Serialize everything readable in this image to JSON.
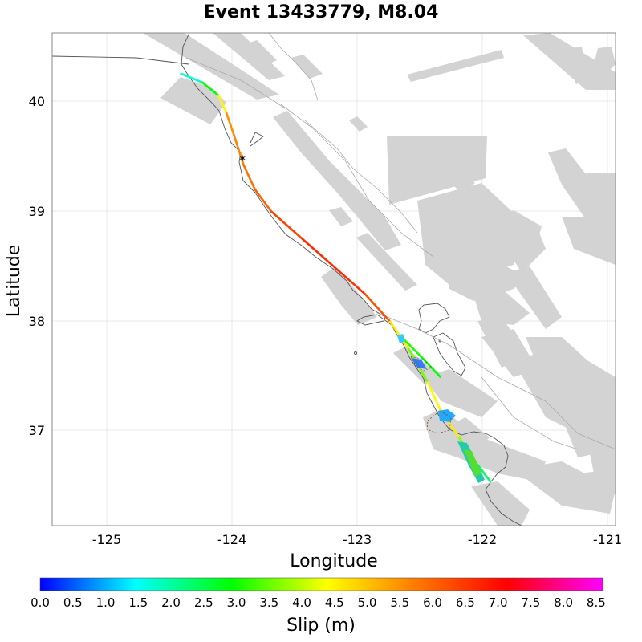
{
  "title": "Event 13433779, M8.04",
  "xlabel": "Longitude",
  "ylabel": "Latitude",
  "x_ticks": [
    "-125",
    "-124",
    "-123",
    "-122",
    "-121"
  ],
  "y_ticks": [
    "40",
    "39",
    "38",
    "37"
  ],
  "colorbar": {
    "label": "Slip (m)",
    "ticks": [
      "0.0",
      "0.5",
      "1.0",
      "1.5",
      "2.0",
      "2.5",
      "3.0",
      "3.5",
      "4.0",
      "4.5",
      "5.0",
      "5.5",
      "6.0",
      "6.5",
      "7.0",
      "7.5",
      "8.0",
      "8.5"
    ],
    "range": [
      0,
      8.6
    ],
    "colors": [
      "#0000ff",
      "#00ffff",
      "#00ff00",
      "#ffff00",
      "#ff8000",
      "#ff0000",
      "#ff00ff"
    ]
  },
  "colors": {
    "fault_patches": "#d3d3d3",
    "coastline": "#555555",
    "grid": "#e6e6e6"
  },
  "chart_data": {
    "type": "map",
    "title": "Event 13433779, M8.04",
    "xlabel": "Longitude",
    "ylabel": "Latitude",
    "xlim": [
      -125.45,
      -120.95
    ],
    "ylim": [
      36.15,
      40.62
    ],
    "grid": true,
    "hypocenter": {
      "lon": -123.93,
      "lat": 39.48
    },
    "rupture_trace": [
      {
        "lon": -124.42,
        "lat": 40.25,
        "slip": 1.0
      },
      {
        "lon": -124.25,
        "lat": 40.17,
        "slip": 2.4
      },
      {
        "lon": -124.12,
        "lat": 40.05,
        "slip": 3.3
      },
      {
        "lon": -124.06,
        "lat": 39.9,
        "slip": 5.5
      },
      {
        "lon": -124.0,
        "lat": 39.7,
        "slip": 5.6
      },
      {
        "lon": -123.92,
        "lat": 39.42,
        "slip": 5.8
      },
      {
        "lon": -123.83,
        "lat": 39.2,
        "slip": 6.0
      },
      {
        "lon": -123.7,
        "lat": 39.0,
        "slip": 6.2
      },
      {
        "lon": -123.45,
        "lat": 38.75,
        "slip": 6.6
      },
      {
        "lon": -123.15,
        "lat": 38.45,
        "slip": 6.8
      },
      {
        "lon": -122.95,
        "lat": 38.25,
        "slip": 6.5
      },
      {
        "lon": -122.75,
        "lat": 38.0,
        "slip": 6.0
      },
      {
        "lon": -122.6,
        "lat": 37.75,
        "slip": 3.0
      },
      {
        "lon": -122.45,
        "lat": 37.45,
        "slip": 4.0
      },
      {
        "lon": -122.35,
        "lat": 37.2,
        "slip": 4.8
      },
      {
        "lon": -122.2,
        "lat": 36.95,
        "slip": 4.2
      },
      {
        "lon": -122.05,
        "lat": 36.7,
        "slip": 3.0
      },
      {
        "lon": -121.95,
        "lat": 36.55,
        "slip": 1.6
      }
    ],
    "branch_trace": [
      {
        "lon": -122.65,
        "lat": 37.85,
        "slip": 3.0
      },
      {
        "lon": -122.5,
        "lat": 37.68,
        "slip": 3.0
      },
      {
        "lon": -122.35,
        "lat": 37.5,
        "slip": 2.7
      }
    ]
  }
}
